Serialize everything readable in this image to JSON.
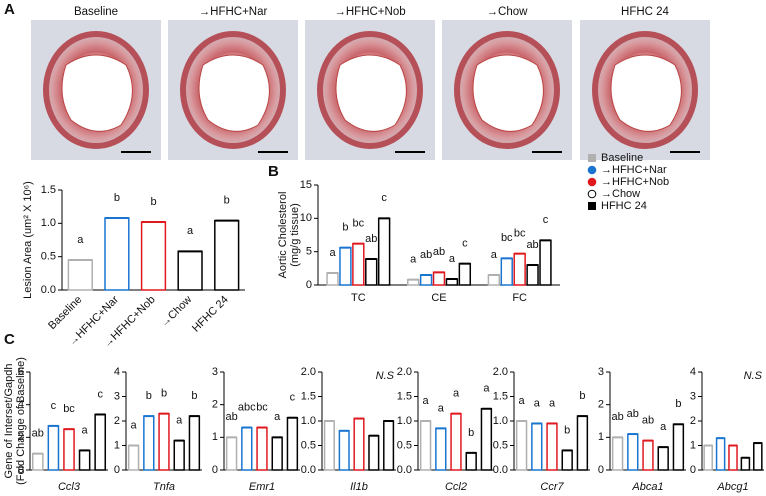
{
  "panels": [
    "A",
    "B",
    "C"
  ],
  "images": {
    "labels": [
      "Baseline",
      "→HFHC+Nar",
      "→HFHC+Nob",
      "→Chow",
      "HFHC 24"
    ]
  },
  "chart_data": [
    {
      "type": "bar",
      "ylabel": [
        "Lesion Area (um² X 10⁶)"
      ],
      "categories": [
        "Baseline",
        "→HFHC+Nar",
        "→HFHC+Nob",
        "→Chow",
        "HFHC 24"
      ],
      "values": [
        0.45,
        1.08,
        1.02,
        0.58,
        1.04
      ],
      "letters": [
        "a",
        "b",
        "b",
        "a",
        "b"
      ],
      "colors": [
        "#b0b0b0",
        "#1a75d1",
        "#e0191f",
        "#000000",
        "#000000"
      ],
      "ylim": [
        0,
        1.5
      ],
      "yticks": [
        {
          "value": 0,
          "label": "0.0"
        },
        {
          "value": 0.5,
          "label": "0.5"
        },
        {
          "value": 1,
          "label": "1.0"
        },
        {
          "value": 1.5,
          "label": "1.5"
        }
      ]
    },
    {
      "type": "bar",
      "ylabel": [
        "Aortic Cholesterol",
        "(mg/g tissue)"
      ],
      "categories": [
        "TC",
        "CE",
        "FC"
      ],
      "series": [
        {
          "name": "Baseline",
          "color": "#b0b0b0",
          "marker": "square",
          "values": [
            1.8,
            0.8,
            1.5
          ],
          "letters": [
            "a",
            "a",
            "a"
          ]
        },
        {
          "name": "→HFHC+Nar",
          "color": "#1a75d1",
          "marker": "circle",
          "values": [
            5.6,
            1.5,
            4.0
          ],
          "letters": [
            "b",
            "ab",
            "bc"
          ]
        },
        {
          "name": "→HFHC+Nob",
          "color": "#e0191f",
          "marker": "circle",
          "values": [
            6.2,
            1.9,
            4.7
          ],
          "letters": [
            "bc",
            "ab",
            "bc"
          ]
        },
        {
          "name": "→Chow",
          "color": "#000000",
          "marker": "open-circle",
          "values": [
            3.9,
            0.9,
            3.0
          ],
          "letters": [
            "ab",
            "a",
            "ab"
          ]
        },
        {
          "name": "HFHC 24",
          "color": "#000000",
          "marker": "square",
          "values": [
            10.0,
            3.2,
            6.7
          ],
          "letters": [
            "c",
            "c",
            "c"
          ]
        }
      ],
      "ylim": [
        0,
        15
      ],
      "yticks": [
        0,
        5,
        10,
        15
      ]
    },
    {
      "type": "bar",
      "ylabel": [
        "Gene of Interset/Gapdh",
        "(Fold Change of Baseline)"
      ],
      "xlabel": "Ccl3",
      "values": [
        1.0,
        2.7,
        2.5,
        1.2,
        3.4
      ],
      "letters": [
        "ab",
        "c",
        "bc",
        "a",
        "c"
      ],
      "colors": [
        "#b0b0b0",
        "#1a75d1",
        "#e0191f",
        "#000000",
        "#000000"
      ],
      "ylim": [
        0,
        6
      ],
      "yticks": [
        0,
        2,
        4,
        6
      ]
    },
    {
      "type": "bar",
      "xlabel": "Tnfa",
      "values": [
        1.0,
        2.2,
        2.3,
        1.2,
        2.2
      ],
      "letters": [
        "a",
        "b",
        "b",
        "a",
        "b"
      ],
      "colors": [
        "#b0b0b0",
        "#1a75d1",
        "#e0191f",
        "#000000",
        "#000000"
      ],
      "ylim": [
        0,
        4
      ],
      "yticks": [
        0,
        1,
        2,
        3,
        4
      ]
    },
    {
      "type": "bar",
      "xlabel": "Emr1",
      "values": [
        1.0,
        1.3,
        1.3,
        1.0,
        1.6
      ],
      "letters": [
        "ab",
        "abc",
        "bc",
        "a",
        "c"
      ],
      "colors": [
        "#b0b0b0",
        "#1a75d1",
        "#e0191f",
        "#000000",
        "#000000"
      ],
      "ylim": [
        0,
        3
      ],
      "yticks": [
        0,
        1,
        2,
        3
      ]
    },
    {
      "type": "bar",
      "xlabel": "Il1b",
      "annotation": "N.S",
      "values": [
        1.0,
        0.8,
        1.05,
        0.7,
        1.0
      ],
      "colors": [
        "#b0b0b0",
        "#1a75d1",
        "#e0191f",
        "#000000",
        "#000000"
      ],
      "ylim": [
        0,
        2
      ],
      "yticks": [
        {
          "value": 0,
          "label": "0.0"
        },
        {
          "value": 0.5,
          "label": "0.5"
        },
        {
          "value": 1,
          "label": "1.0"
        },
        {
          "value": 1.5,
          "label": "1.5"
        },
        {
          "value": 2,
          "label": "2.0"
        }
      ]
    },
    {
      "type": "bar",
      "xlabel": "Ccl2",
      "values": [
        1.0,
        0.85,
        1.15,
        0.35,
        1.25
      ],
      "letters": [
        "a",
        "a",
        "a",
        "b",
        "a"
      ],
      "colors": [
        "#b0b0b0",
        "#1a75d1",
        "#e0191f",
        "#000000",
        "#000000"
      ],
      "ylim": [
        0,
        2
      ],
      "yticks": [
        {
          "value": 0,
          "label": "0.0"
        },
        {
          "value": 0.5,
          "label": "0.5"
        },
        {
          "value": 1,
          "label": "1.0"
        },
        {
          "value": 1.5,
          "label": "1.5"
        },
        {
          "value": 2,
          "label": "2.0"
        }
      ]
    },
    {
      "type": "bar",
      "xlabel": "Ccr7",
      "values": [
        1.0,
        0.95,
        0.95,
        0.4,
        1.1
      ],
      "letters": [
        "a",
        "a",
        "a",
        "b",
        "b"
      ],
      "colors": [
        "#b0b0b0",
        "#1a75d1",
        "#e0191f",
        "#000000",
        "#000000"
      ],
      "ylim": [
        0,
        2
      ],
      "yticks": [
        {
          "value": 0,
          "label": "0.0"
        },
        {
          "value": 0.5,
          "label": "0.5"
        },
        {
          "value": 1,
          "label": "1.0"
        },
        {
          "value": 1.5,
          "label": "1.5"
        },
        {
          "value": 2,
          "label": "2.0"
        }
      ]
    },
    {
      "type": "bar",
      "xlabel": "Abca1",
      "values": [
        1.0,
        1.1,
        0.9,
        0.7,
        1.4
      ],
      "letters": [
        "ab",
        "ab",
        "ab",
        "a",
        "b"
      ],
      "colors": [
        "#b0b0b0",
        "#1a75d1",
        "#e0191f",
        "#000000",
        "#000000"
      ],
      "ylim": [
        0,
        3
      ],
      "yticks": [
        0,
        1,
        2,
        3
      ]
    },
    {
      "type": "bar",
      "xlabel": "Abcg1",
      "annotation": "N.S",
      "values": [
        1.0,
        1.3,
        1.0,
        0.5,
        1.1
      ],
      "colors": [
        "#b0b0b0",
        "#1a75d1",
        "#e0191f",
        "#000000",
        "#000000"
      ],
      "ylim": [
        0,
        4
      ],
      "yticks": [
        0,
        1,
        2,
        3,
        4
      ]
    }
  ]
}
